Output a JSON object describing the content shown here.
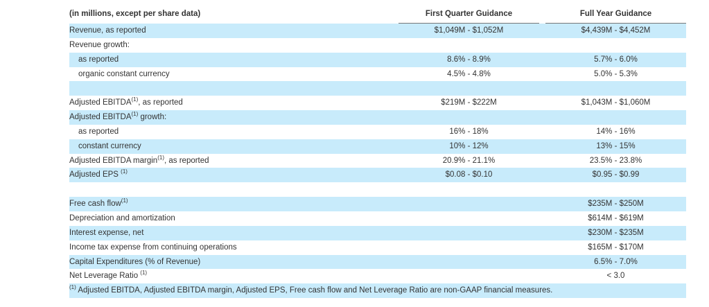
{
  "header": {
    "label": "(in millions, except per share data)",
    "col_q1": "First Quarter Guidance",
    "col_fy": "Full Year Guidance"
  },
  "rows": [
    {
      "label": "Revenue, as reported",
      "sup": "",
      "q1": "$1,049M - $1,052M",
      "fy": "$4,439M - $4,452M",
      "indent": false
    },
    {
      "label": "Revenue growth:",
      "sup": "",
      "q1": "",
      "fy": "",
      "indent": false
    },
    {
      "label": "as reported",
      "sup": "",
      "q1": "8.6% - 8.9%",
      "fy": "5.7% - 6.0%",
      "indent": true
    },
    {
      "label": "organic constant currency",
      "sup": "",
      "q1": "4.5% - 4.8%",
      "fy": "5.0% - 5.3%",
      "indent": true
    },
    {
      "label": "",
      "sup": "",
      "q1": "",
      "fy": "",
      "indent": false
    },
    {
      "label": "Adjusted EBITDA",
      "sup": "(1)",
      "after": ", as reported",
      "q1": "$219M - $222M",
      "fy": "$1,043M - $1,060M",
      "indent": false
    },
    {
      "label": "Adjusted EBITDA",
      "sup": "(1)",
      "after": " growth:",
      "q1": "",
      "fy": "",
      "indent": false
    },
    {
      "label": "as reported",
      "sup": "",
      "q1": "16% - 18%",
      "fy": "14% - 16%",
      "indent": true
    },
    {
      "label": "constant currency",
      "sup": "",
      "q1": "10% - 12%",
      "fy": "13% - 15%",
      "indent": true
    },
    {
      "label": "Adjusted EBITDA margin",
      "sup": "(1)",
      "after": ", as reported",
      "q1": "20.9% - 21.1%",
      "fy": "23.5% - 23.8%",
      "indent": false
    },
    {
      "label": "Adjusted EPS ",
      "sup": "(1)",
      "q1": "$0.08 - $0.10",
      "fy": "$0.95 - $0.99",
      "indent": false
    },
    {
      "label": "",
      "sup": "",
      "q1": "",
      "fy": "",
      "indent": false
    },
    {
      "label": "Free cash flow",
      "sup": "(1)",
      "q1": "",
      "fy": "$235M - $250M",
      "indent": false
    },
    {
      "label": "Depreciation and amortization",
      "sup": "",
      "q1": "",
      "fy": "$614M - $619M",
      "indent": false
    },
    {
      "label": "Interest expense, net",
      "sup": "",
      "q1": "",
      "fy": "$230M - $235M",
      "indent": false
    },
    {
      "label": "Income tax expense from continuing operations",
      "sup": "",
      "q1": "",
      "fy": "$165M - $170M",
      "indent": false
    },
    {
      "label": "Capital Expenditures (% of Revenue)",
      "sup": "",
      "q1": "",
      "fy": "6.5% - 7.0%",
      "indent": false
    },
    {
      "label": "Net Leverage Ratio ",
      "sup": "(1)",
      "q1": "",
      "fy": "< 3.0",
      "indent": false
    }
  ],
  "footnote": {
    "sup": "(1)",
    "text": " Adjusted EBITDA, Adjusted EBITDA margin, Adjusted EPS, Free cash flow and Net Leverage Ratio are non-GAAP financial measures."
  },
  "colors": {
    "row_band": "#c8ebfb",
    "text": "#333333"
  }
}
